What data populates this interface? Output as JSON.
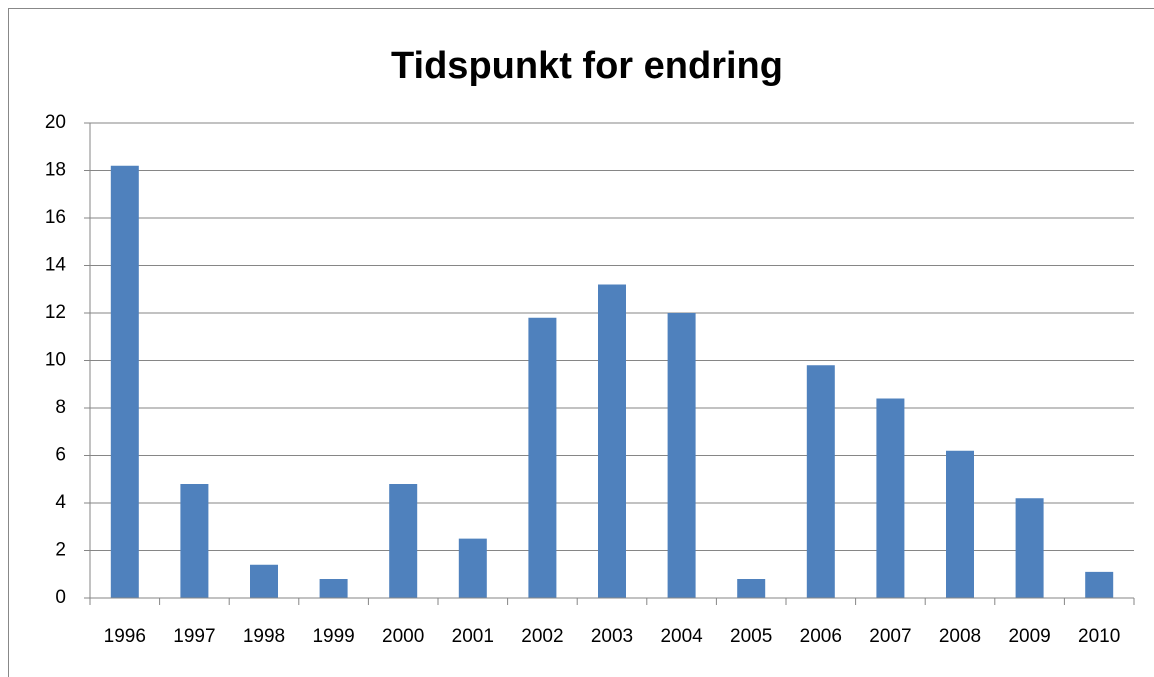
{
  "chart_data": {
    "type": "bar",
    "title": "Tidspunkt for endring",
    "categories": [
      "1996",
      "1997",
      "1998",
      "1999",
      "2000",
      "2001",
      "2002",
      "2003",
      "2004",
      "2005",
      "2006",
      "2007",
      "2008",
      "2009",
      "2010"
    ],
    "values": [
      18.2,
      4.8,
      1.4,
      0.8,
      4.8,
      2.5,
      11.8,
      13.2,
      12.0,
      0.8,
      9.8,
      8.4,
      6.2,
      4.2,
      1.1
    ],
    "color": "#4f81bd",
    "ylim": [
      0,
      20
    ],
    "yticks": [
      0,
      2,
      4,
      6,
      8,
      10,
      12,
      14,
      16,
      18,
      20
    ],
    "grid": true
  }
}
